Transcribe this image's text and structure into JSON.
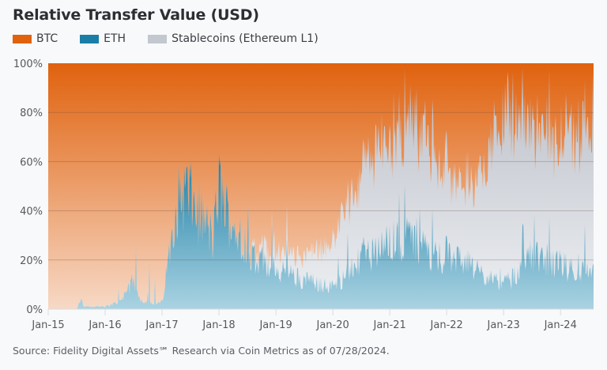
{
  "chart_data": {
    "type": "area",
    "stacked": "percent",
    "title": "Relative Transfer Value (USD)",
    "xlabel": "",
    "ylabel": "",
    "ylim": [
      0,
      100
    ],
    "y_ticks": [
      "0%",
      "20%",
      "40%",
      "60%",
      "80%",
      "100%"
    ],
    "x_ticks": [
      "Jan-15",
      "Jan-16",
      "Jan-17",
      "Jan-18",
      "Jan-19",
      "Jan-20",
      "Jan-21",
      "Jan-22",
      "Jan-23",
      "Jan-24"
    ],
    "x_range": [
      "2015-01",
      "2024-07"
    ],
    "grid": true,
    "legend_position": "top-left",
    "colors": {
      "BTC": "#e0620e",
      "ETH": "#1b7ea6",
      "Stablecoins (Ethereum L1)": "#c3c7cf"
    },
    "x": [
      2015.0,
      2015.5,
      2015.58,
      2015.62,
      2016.0,
      2016.25,
      2016.4,
      2016.5,
      2016.6,
      2016.75,
      2016.9,
      2017.0,
      2017.1,
      2017.2,
      2017.3,
      2017.45,
      2017.6,
      2017.75,
      2017.9,
      2018.0,
      2018.1,
      2018.25,
      2018.4,
      2018.6,
      2018.75,
      2018.9,
      2019.0,
      2019.25,
      2019.5,
      2019.75,
      2020.0,
      2020.25,
      2020.5,
      2020.75,
      2021.0,
      2021.25,
      2021.5,
      2021.75,
      2022.0,
      2022.25,
      2022.5,
      2022.75,
      2023.0,
      2023.25,
      2023.5,
      2023.75,
      2024.0,
      2024.25,
      2024.58
    ],
    "series": [
      {
        "name": "ETH",
        "values": [
          0,
          0,
          4,
          1,
          1,
          3,
          8,
          12,
          4,
          3,
          2,
          3,
          18,
          38,
          45,
          48,
          40,
          35,
          28,
          50,
          42,
          32,
          30,
          22,
          20,
          16,
          16,
          14,
          12,
          10,
          9,
          14,
          20,
          24,
          26,
          30,
          28,
          22,
          22,
          20,
          16,
          12,
          10,
          14,
          22,
          18,
          18,
          16,
          15
        ]
      },
      {
        "name": "Stablecoins (Ethereum L1)",
        "values": [
          0,
          0,
          0,
          0,
          0,
          0,
          0,
          0,
          0,
          0,
          0,
          0,
          0,
          0,
          0,
          0,
          0,
          0,
          0,
          0,
          0,
          0,
          0,
          2,
          4,
          6,
          6,
          8,
          10,
          14,
          18,
          26,
          34,
          40,
          44,
          44,
          46,
          42,
          36,
          30,
          38,
          50,
          70,
          66,
          50,
          48,
          52,
          54,
          55
        ]
      },
      {
        "name": "BTC",
        "values": [
          100,
          100,
          96,
          99,
          99,
          97,
          92,
          88,
          96,
          97,
          98,
          97,
          82,
          62,
          55,
          52,
          60,
          65,
          72,
          50,
          58,
          68,
          70,
          76,
          76,
          78,
          78,
          78,
          78,
          76,
          73,
          60,
          46,
          36,
          30,
          26,
          26,
          36,
          42,
          50,
          46,
          38,
          20,
          20,
          28,
          34,
          30,
          30,
          30
        ]
      }
    ],
    "legend": [
      "BTC",
      "ETH",
      "Stablecoins (Ethereum L1)"
    ]
  },
  "header": {
    "title": "Relative Transfer Value (USD)"
  },
  "legend": {
    "items": [
      {
        "label": "BTC",
        "color": "#e0620e"
      },
      {
        "label": "ETH",
        "color": "#1b7ea6"
      },
      {
        "label": "Stablecoins (Ethereum L1)",
        "color": "#c3c7cf"
      }
    ]
  },
  "footer": {
    "source": "Source: Fidelity Digital Assets℠ Research via Coin Metrics as of 07/28/2024."
  }
}
